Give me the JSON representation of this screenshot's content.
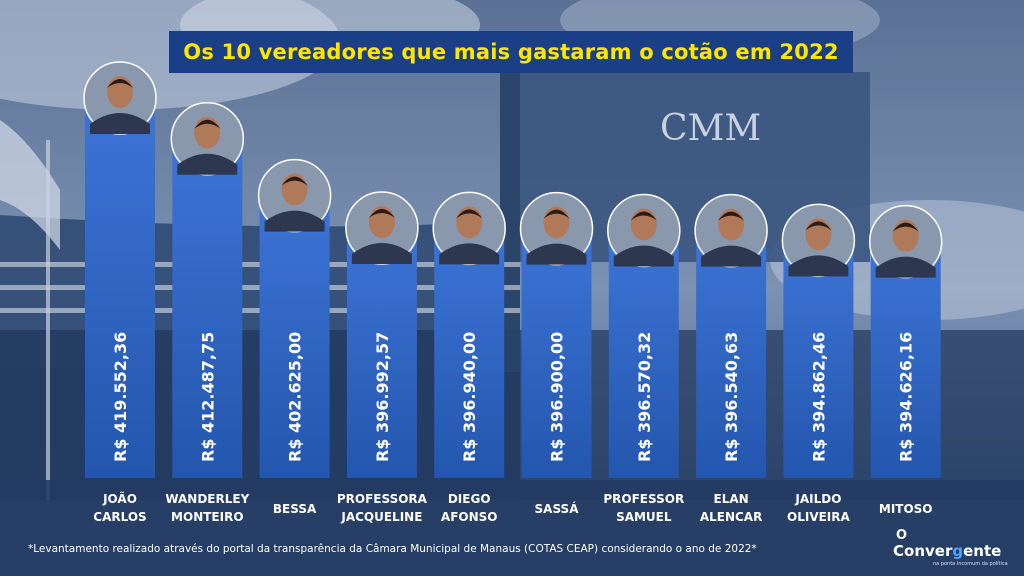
{
  "title": "Os 10 vereadores que mais gastaram o cotão em 2022",
  "building_sign": "CMM",
  "footnote": "*Levantamento realizado através do portal da transparência da Câmara Municipal de Manaus (COTAS CEAP) considerando o ano de 2022*",
  "logo": {
    "line1": "O",
    "line2_a": "Conver",
    "line2_b": "g",
    "line2_c": "ente",
    "tagline": "na ponta incomum da política"
  },
  "colors": {
    "title_bg": "#1b3f86",
    "title_text": "#ffe600",
    "bar_top": "#3d74d6",
    "bar_bottom": "#2356ad",
    "label_text": "#ffffff"
  },
  "chart_data": {
    "type": "bar",
    "title": "Os 10 vereadores que mais gastaram o cotão em 2022",
    "categories": [
      [
        "JOÃO",
        "CARLOS"
      ],
      [
        "WANDERLEY",
        "MONTEIRO"
      ],
      [
        "BESSA"
      ],
      [
        "PROFESSORA",
        "JACQUELINE"
      ],
      [
        "DIEGO",
        "AFONSO"
      ],
      [
        "SASSÁ"
      ],
      [
        "PROFESSOR",
        "SAMUEL"
      ],
      [
        "ELAN",
        "ALENCAR"
      ],
      [
        "JAILDO",
        "OLIVEIRA"
      ],
      [
        "MITOSO"
      ]
    ],
    "values": [
      419552.36,
      412487.75,
      402625.0,
      396992.57,
      396940.0,
      396900.0,
      396570.32,
      396540.63,
      394862.46,
      394626.16
    ],
    "value_labels": [
      "R$ 419.552,36",
      "R$ 412.487,75",
      "R$ 402.625,00",
      "R$ 396.992,57",
      "R$ 396.940,00",
      "R$ 396.900,00",
      "R$ 396.570,32",
      "R$ 396.540,63",
      "R$ 394.862,46",
      "R$ 394.626,16"
    ],
    "photo_icons": [
      "portrait-icon",
      "portrait-icon",
      "portrait-icon",
      "portrait-icon",
      "portrait-icon",
      "portrait-icon",
      "portrait-icon",
      "portrait-icon",
      "portrait-icon",
      "portrait-icon"
    ]
  }
}
